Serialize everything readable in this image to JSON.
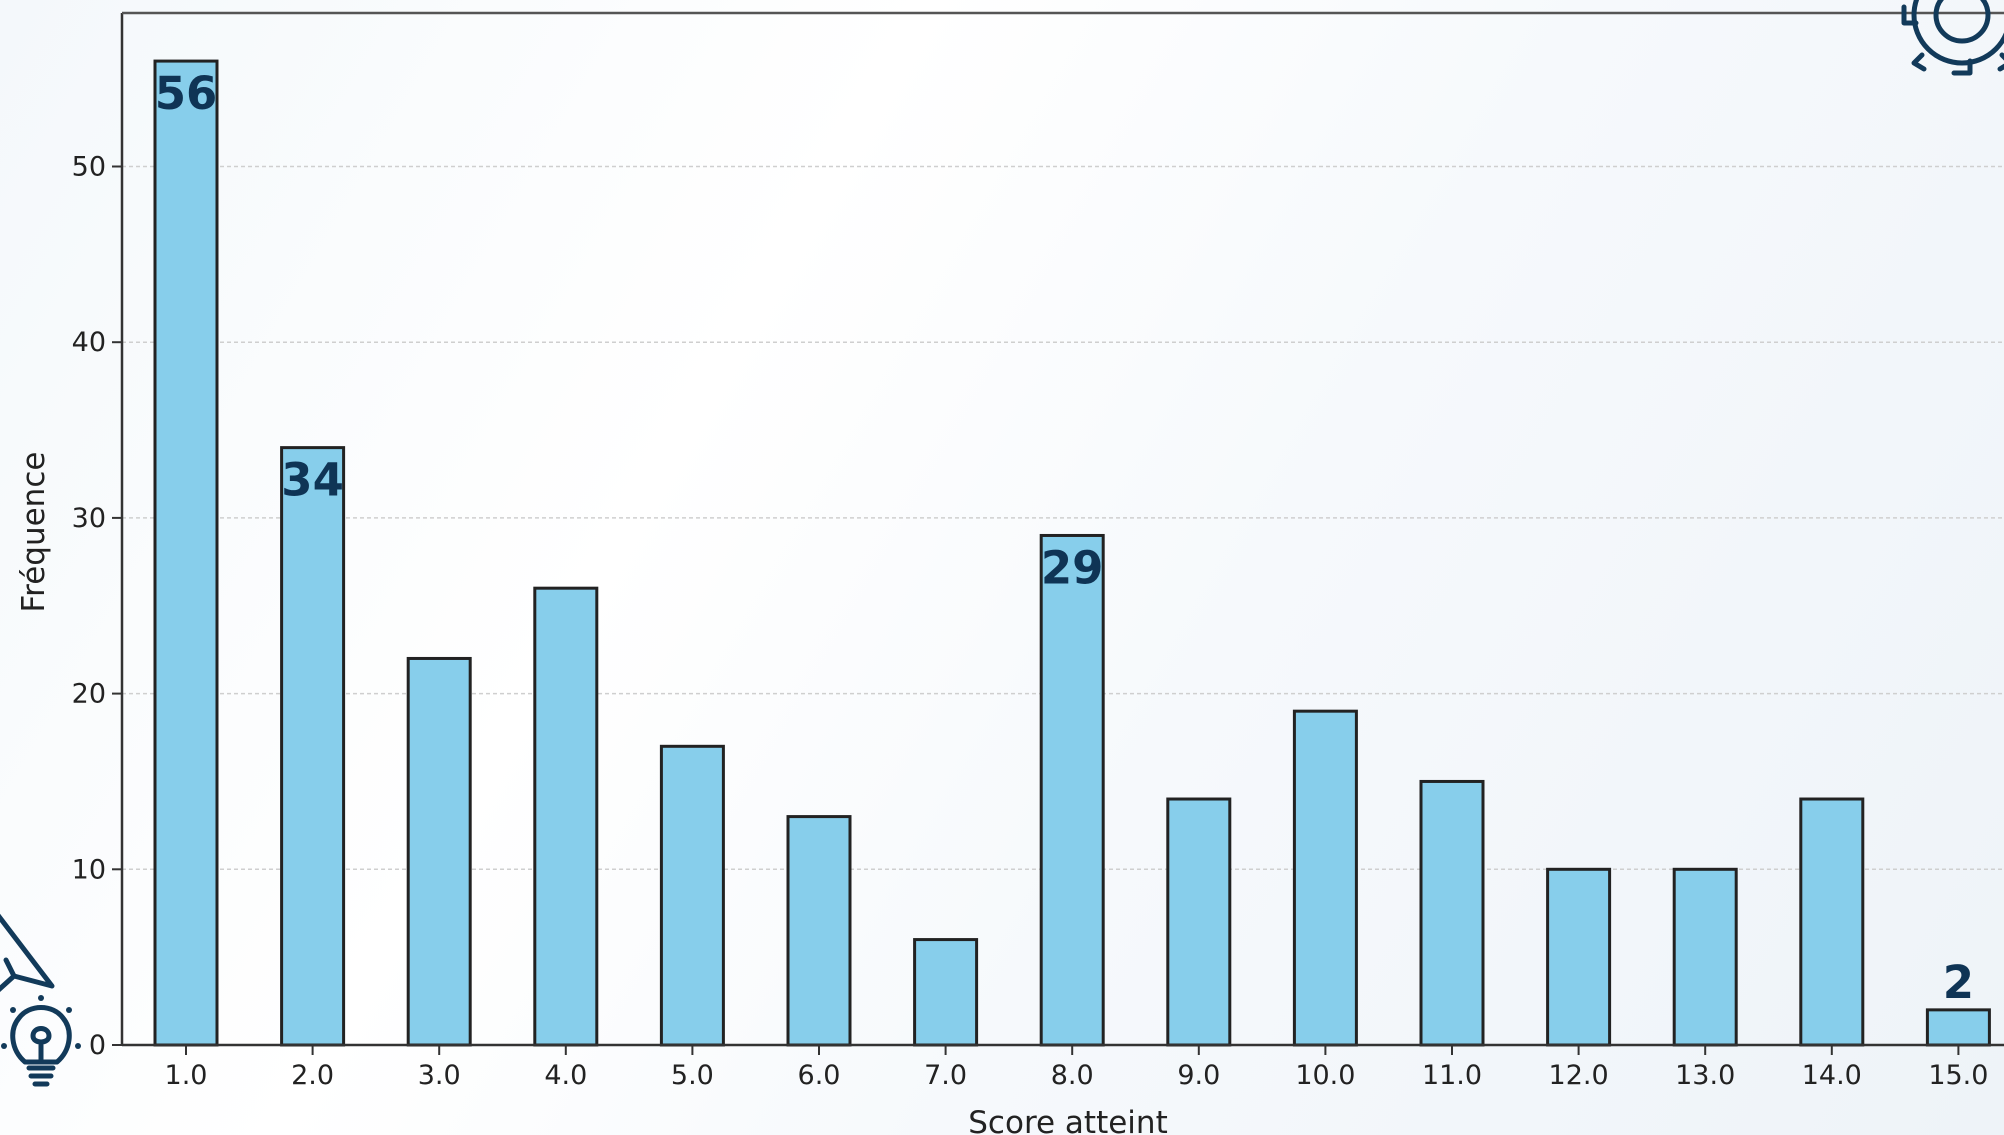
{
  "chart_data": {
    "type": "bar",
    "categories": [
      "1.0",
      "2.0",
      "3.0",
      "4.0",
      "5.0",
      "6.0",
      "7.0",
      "8.0",
      "9.0",
      "10.0",
      "11.0",
      "12.0",
      "13.0",
      "14.0",
      "15.0"
    ],
    "values": [
      56,
      34,
      22,
      26,
      17,
      13,
      6,
      29,
      14,
      19,
      15,
      10,
      10,
      14,
      2
    ],
    "data_labels": [
      {
        "category": "1.0",
        "text": "56"
      },
      {
        "category": "2.0",
        "text": "34"
      },
      {
        "category": "8.0",
        "text": "29"
      },
      {
        "category": "15.0",
        "text": "2"
      }
    ],
    "xlabel": "Score atteint",
    "ylabel": "Fréquence",
    "ylim": [
      0,
      58.5
    ],
    "yticks": [
      0,
      10,
      20,
      30,
      40,
      50
    ],
    "grid": "horizontal dashed",
    "bar_color": "#87ceeb",
    "edge_color": "#222222",
    "label_color": "#0f3455"
  },
  "decorations": {
    "icons": [
      "gear-icon",
      "paper-plane-icon",
      "lightbulb-icon"
    ],
    "accent_color": "#123a5a"
  }
}
